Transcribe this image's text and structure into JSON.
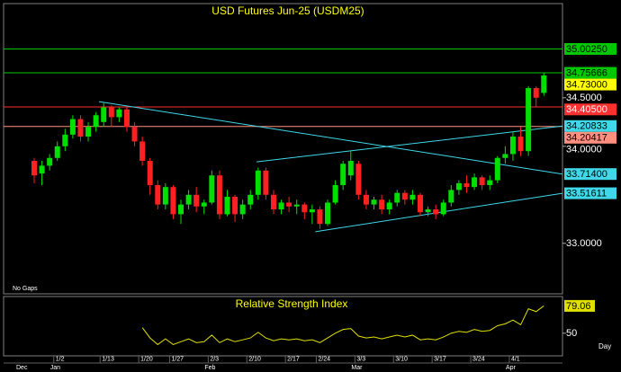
{
  "chart_data": {
    "type": "candlestick",
    "title": "USD Futures Jun-25 (USDM25)",
    "note": "No Gaps",
    "x_unit": "Day",
    "categories": [
      null,
      null,
      null,
      "1/2",
      null,
      null,
      null,
      null,
      null,
      "1/13",
      null,
      null,
      null,
      null,
      "1/20",
      null,
      null,
      null,
      "1/27",
      null,
      null,
      null,
      null,
      "2/3",
      null,
      null,
      null,
      null,
      "2/10",
      null,
      null,
      null,
      null,
      "2/17",
      null,
      null,
      null,
      "2/24",
      null,
      null,
      null,
      null,
      "3/3",
      null,
      null,
      null,
      null,
      "3/10",
      null,
      null,
      null,
      null,
      "3/17",
      null,
      null,
      null,
      null,
      "3/24",
      null,
      null,
      null,
      null,
      "4/1",
      null,
      null,
      null,
      null
    ],
    "month_labels": [
      "Dec",
      null,
      null,
      "Jan",
      null,
      null,
      null,
      null,
      null,
      null,
      null,
      null,
      null,
      null,
      null,
      null,
      null,
      null,
      null,
      null,
      null,
      null,
      null,
      "Feb",
      null,
      null,
      null,
      null,
      null,
      null,
      null,
      null,
      null,
      null,
      null,
      null,
      null,
      null,
      null,
      null,
      null,
      null,
      "Mar",
      null,
      null,
      null,
      null,
      null,
      null,
      null,
      null,
      null,
      null,
      null,
      null,
      null,
      null,
      null,
      null,
      null,
      null,
      null,
      "Apr",
      null,
      null,
      null,
      null
    ],
    "open": [
      33.85,
      33.72,
      33.8,
      33.88,
      34.0,
      34.12,
      34.28,
      34.1,
      34.2,
      34.25,
      34.4,
      34.3,
      34.38,
      34.2,
      34.05,
      33.85,
      33.6,
      33.4,
      33.58,
      33.3,
      33.4,
      33.5,
      33.38,
      33.42,
      33.7,
      33.3,
      33.48,
      33.3,
      33.4,
      33.5,
      33.75,
      33.5,
      33.35,
      33.42,
      33.38,
      33.4,
      33.32,
      33.35,
      33.2,
      33.42,
      33.6,
      33.7,
      33.82,
      33.5,
      33.4,
      33.45,
      33.35,
      33.42,
      33.52,
      33.45,
      33.5,
      33.32,
      33.35,
      33.3,
      33.42,
      33.55,
      33.62,
      33.58,
      33.68,
      33.6,
      33.65,
      33.88,
      33.92,
      34.1,
      33.95,
      34.6,
      34.55
    ],
    "high": [
      33.88,
      33.85,
      33.92,
      34.05,
      34.18,
      34.32,
      34.32,
      34.25,
      34.35,
      34.45,
      34.42,
      34.4,
      34.4,
      34.25,
      34.1,
      33.88,
      33.65,
      33.62,
      33.6,
      33.45,
      33.55,
      33.58,
      33.45,
      33.75,
      33.75,
      33.55,
      33.5,
      33.45,
      33.55,
      33.78,
      33.78,
      33.55,
      33.45,
      33.48,
      33.45,
      33.42,
      33.4,
      33.38,
      33.45,
      33.65,
      33.85,
      33.95,
      33.85,
      33.55,
      33.48,
      33.5,
      33.45,
      33.55,
      33.55,
      33.55,
      33.52,
      33.38,
      33.4,
      33.45,
      33.6,
      33.65,
      33.7,
      33.72,
      33.7,
      33.7,
      33.9,
      34.0,
      34.15,
      34.2,
      34.62,
      34.62,
      34.76
    ],
    "low": [
      33.62,
      33.6,
      33.75,
      33.85,
      33.95,
      34.08,
      34.05,
      34.05,
      34.15,
      34.2,
      34.2,
      34.25,
      34.15,
      34.0,
      33.8,
      33.5,
      33.35,
      33.35,
      33.25,
      33.2,
      33.35,
      33.32,
      33.3,
      33.4,
      33.25,
      33.28,
      33.22,
      33.25,
      33.35,
      33.45,
      33.45,
      33.3,
      33.3,
      33.32,
      33.3,
      33.25,
      33.2,
      33.15,
      33.18,
      33.4,
      33.55,
      33.65,
      33.45,
      33.35,
      33.35,
      33.3,
      33.3,
      33.38,
      33.4,
      33.4,
      33.28,
      33.28,
      33.25,
      33.28,
      33.38,
      33.5,
      33.52,
      33.55,
      33.55,
      33.55,
      33.62,
      33.82,
      33.85,
      33.9,
      33.9,
      34.4,
      34.52
    ],
    "close": [
      33.7,
      33.8,
      33.88,
      34.0,
      34.12,
      34.28,
      34.1,
      34.2,
      34.32,
      34.4,
      34.3,
      34.38,
      34.2,
      34.05,
      33.85,
      33.6,
      33.4,
      33.58,
      33.3,
      33.4,
      33.5,
      33.38,
      33.42,
      33.7,
      33.3,
      33.48,
      33.3,
      33.4,
      33.5,
      33.75,
      33.5,
      33.35,
      33.42,
      33.38,
      33.4,
      33.32,
      33.35,
      33.2,
      33.42,
      33.6,
      33.82,
      33.85,
      33.5,
      33.4,
      33.45,
      33.35,
      33.42,
      33.52,
      33.45,
      33.5,
      33.32,
      33.35,
      33.3,
      33.42,
      33.55,
      33.62,
      33.58,
      33.68,
      33.6,
      33.65,
      33.88,
      33.92,
      34.1,
      33.95,
      34.6,
      34.5,
      34.73
    ],
    "up_color": "#00e000",
    "down_color": "#ff2020",
    "ylim": [
      32.48,
      35.47
    ],
    "yticks": [
      {
        "value": 34.5,
        "label": "34.5000"
      },
      {
        "value": 34,
        "label": "34.0000"
      },
      {
        "value": 33,
        "label": "33.0000"
      }
    ],
    "price_levels": [
      {
        "value": 35.0025,
        "label": "35.00250",
        "color": "#00c800",
        "label_color": "#000000"
      },
      {
        "value": 34.75666,
        "label": "34.75666",
        "color": "#00c800",
        "label_color": "#000000"
      },
      {
        "value": 34.405,
        "label": "34.40500",
        "color": "#ff3030",
        "label_color": "#ffffff"
      },
      {
        "value": 34.20417,
        "label": "34.20417",
        "color": "#ff9080",
        "label_color": "#000000"
      }
    ],
    "trendlines": [
      {
        "x": [
          8.4,
          68.4
        ],
        "y": [
          34.46,
          33.714
        ],
        "end_label": "33.71400",
        "color": "#40d8e8"
      },
      {
        "x": [
          28.8,
          68.4
        ],
        "y": [
          33.84,
          34.20833
        ],
        "end_label": "34.20833",
        "color": "#40d8e8"
      },
      {
        "x": [
          36.4,
          68.4
        ],
        "y": [
          33.12,
          33.51611
        ],
        "end_label": "33.51611",
        "color": "#40d8e8"
      }
    ],
    "last_price": {
      "value": 34.73,
      "label": "34.73000",
      "color": "#ffff00"
    },
    "rsi": {
      "title": "Relative Strength Index",
      "color": "#e0e000",
      "values": [
        null,
        null,
        null,
        null,
        null,
        null,
        null,
        null,
        null,
        null,
        null,
        null,
        null,
        null,
        56,
        45,
        38,
        44,
        38,
        41,
        44,
        40,
        41,
        48,
        40,
        44,
        41,
        43,
        45,
        51,
        45,
        42,
        44,
        43,
        44,
        42,
        43,
        40,
        45,
        50,
        54,
        55,
        47,
        45,
        46,
        44,
        46,
        48,
        46,
        48,
        43,
        44,
        43,
        46,
        50,
        52,
        51,
        54,
        52,
        53,
        58,
        60,
        64,
        59,
        76,
        73,
        79.06
      ],
      "ylim": [
        26,
        89
      ],
      "yticks": [
        50
      ]
    }
  }
}
